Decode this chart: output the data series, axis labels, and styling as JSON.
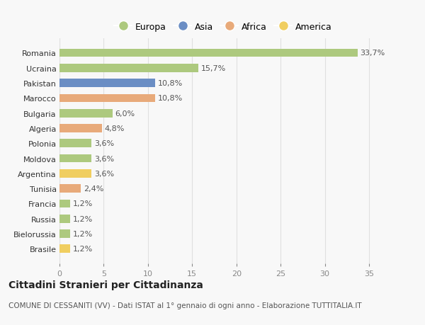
{
  "categories": [
    "Romania",
    "Ucraina",
    "Pakistan",
    "Marocco",
    "Bulgaria",
    "Algeria",
    "Polonia",
    "Moldova",
    "Argentina",
    "Tunisia",
    "Francia",
    "Russia",
    "Bielorussia",
    "Brasile"
  ],
  "values": [
    33.7,
    15.7,
    10.8,
    10.8,
    6.0,
    4.8,
    3.6,
    3.6,
    3.6,
    2.4,
    1.2,
    1.2,
    1.2,
    1.2
  ],
  "labels": [
    "33,7%",
    "15,7%",
    "10,8%",
    "10,8%",
    "6,0%",
    "4,8%",
    "3,6%",
    "3,6%",
    "3,6%",
    "2,4%",
    "1,2%",
    "1,2%",
    "1,2%",
    "1,2%"
  ],
  "continents": [
    "Europa",
    "Europa",
    "Asia",
    "Africa",
    "Europa",
    "Africa",
    "Europa",
    "Europa",
    "America",
    "Africa",
    "Europa",
    "Europa",
    "Europa",
    "America"
  ],
  "colors": {
    "Europa": "#adc97e",
    "Asia": "#6b8ec4",
    "Africa": "#e8aa7a",
    "America": "#f0ce60"
  },
  "legend_order": [
    "Europa",
    "Asia",
    "Africa",
    "America"
  ],
  "title": "Cittadini Stranieri per Cittadinanza",
  "subtitle": "COMUNE DI CESSANITI (VV) - Dati ISTAT al 1° gennaio di ogni anno - Elaborazione TUTTITALIA.IT",
  "xlim": [
    0,
    37
  ],
  "xticks": [
    0,
    5,
    10,
    15,
    20,
    25,
    30,
    35
  ],
  "background_color": "#f8f8f8",
  "grid_color": "#e0e0e0",
  "bar_height": 0.55,
  "label_fontsize": 8,
  "ytick_fontsize": 8,
  "xtick_fontsize": 8,
  "title_fontsize": 10,
  "subtitle_fontsize": 7.5
}
